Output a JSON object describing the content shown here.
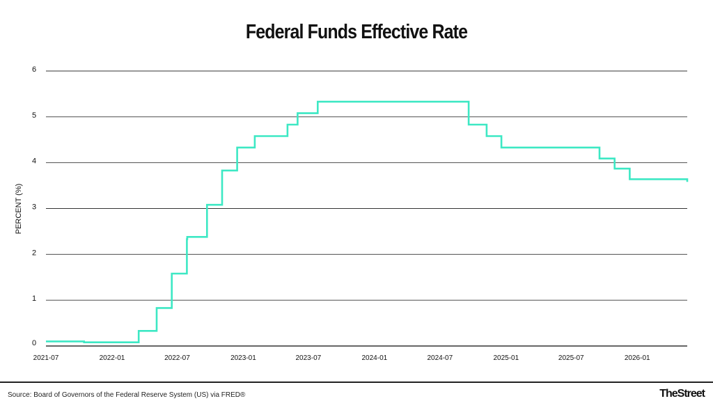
{
  "header": {
    "title": "Federal Funds Effective Rate"
  },
  "footer": {
    "source": "Source: Board of Governors of the Federal Reserve System (US) via FRED®",
    "brand": "TheStreet"
  },
  "colors": {
    "line": "#3de8c4",
    "grid": "#333333",
    "text": "#111111"
  },
  "chart_data": {
    "type": "line",
    "title": "Federal Funds Effective Rate",
    "ylabel": "PERCENT (%)",
    "xlabel": "",
    "ylim": [
      0,
      6
    ],
    "xlim": [
      "2021-07-01",
      "2026-05-20"
    ],
    "grid": true,
    "yticks": [
      0,
      1,
      2,
      3,
      4,
      5,
      6
    ],
    "xticks": [
      "2021-07",
      "2022-01",
      "2022-07",
      "2023-01",
      "2023-07",
      "2024-01",
      "2024-07",
      "2025-01",
      "2025-07",
      "2026-01"
    ],
    "series": [
      {
        "x": [
          "2021-07-01",
          "2021-09-15",
          "2021-10-15",
          "2022-03-16",
          "2022-03-31",
          "2022-05-05",
          "2022-06-16",
          "2022-07-28",
          "2022-07-29",
          "2022-09-22",
          "2022-11-03",
          "2022-12-15",
          "2023-02-02",
          "2023-03-23",
          "2023-04-20",
          "2023-05-04",
          "2023-06-01",
          "2023-06-15",
          "2023-07-27",
          "2024-09-19",
          "2024-10-15",
          "2024-11-08",
          "2024-12-19",
          "2025-09-18",
          "2025-10-30",
          "2025-12-11",
          "2026-05-01",
          "2026-05-20"
        ],
        "y": [
          0.1,
          0.1,
          0.08,
          0.33,
          0.33,
          0.83,
          1.58,
          2.33,
          2.38,
          3.08,
          3.83,
          4.33,
          4.58,
          4.58,
          4.58,
          4.83,
          5.08,
          5.08,
          5.33,
          4.83,
          4.83,
          4.58,
          4.33,
          4.09,
          3.87,
          3.64,
          3.64,
          3.58
        ]
      }
    ]
  }
}
